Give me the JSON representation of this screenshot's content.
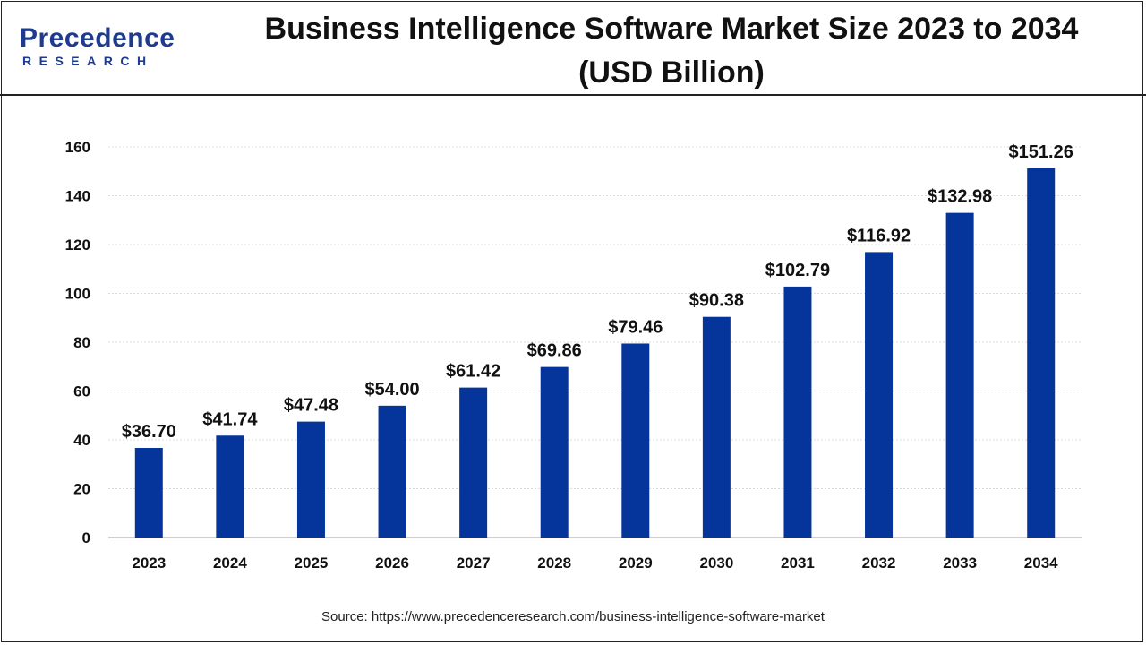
{
  "header": {
    "logo_main": "Precedence",
    "logo_sub": "RESEARCH",
    "title": "Business Intelligence Software Market Size 2023 to 2034 (USD Billion)"
  },
  "chart_data": {
    "type": "bar",
    "title": "Business Intelligence Software Market Size 2023 to 2034 (USD Billion)",
    "xlabel": "",
    "ylabel": "",
    "categories": [
      "2023",
      "2024",
      "2025",
      "2026",
      "2027",
      "2028",
      "2029",
      "2030",
      "2031",
      "2032",
      "2033",
      "2034"
    ],
    "values": [
      36.7,
      41.74,
      47.48,
      54.0,
      61.42,
      69.86,
      79.46,
      90.38,
      102.79,
      116.92,
      132.98,
      151.26
    ],
    "value_labels": [
      "$36.70",
      "$41.74",
      "$47.48",
      "$54.00",
      "$61.42",
      "$69.86",
      "$79.46",
      "$90.38",
      "$102.79",
      "$116.92",
      "$132.98",
      "$151.26"
    ],
    "ylim": [
      0,
      160
    ],
    "yticks": [
      0,
      20,
      40,
      60,
      80,
      100,
      120,
      140,
      160
    ],
    "grid": true,
    "legend": "none",
    "bar_color": "#05359b"
  },
  "footer": {
    "source": "Source: https://www.precedenceresearch.com/business-intelligence-software-market"
  }
}
